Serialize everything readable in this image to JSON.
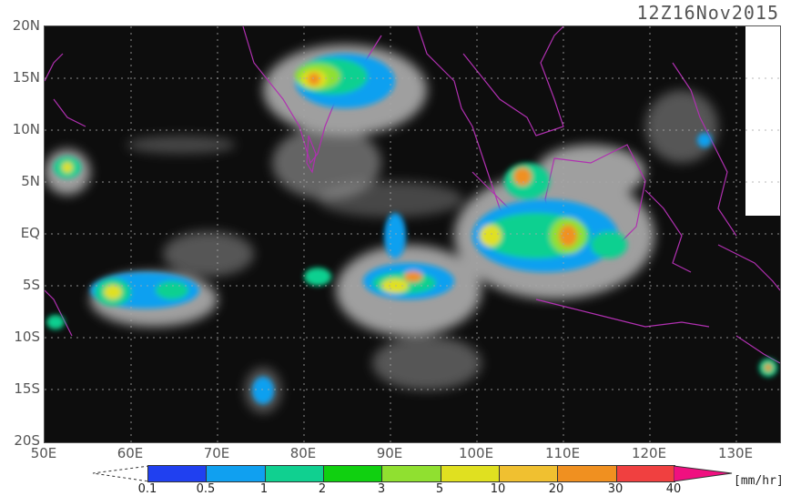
{
  "title": "12Z16Nov2015",
  "y_labels": [
    "20N",
    "15N",
    "10N",
    "5N",
    "EQ",
    "5S",
    "10S",
    "15S",
    "20S"
  ],
  "x_labels": [
    "50E",
    "60E",
    "70E",
    "80E",
    "90E",
    "100E",
    "110E",
    "120E",
    "130E"
  ],
  "colorbar": {
    "ticks": [
      "0.1",
      "0.5",
      "1",
      "2",
      "3",
      "5",
      "10",
      "20",
      "30",
      "40"
    ],
    "unit": "[mm/hr]",
    "colors": [
      "#2040f0",
      "#10a0f0",
      "#10d090",
      "#10d010",
      "#90e030",
      "#e0e020",
      "#f0c030",
      "#f09020",
      "#f04040",
      "#f01080"
    ]
  },
  "colors": {
    "background": "#0d0d0d",
    "grid": "#aaaaaa",
    "coastline": "#b030b0",
    "cloud": "#dcdcdc",
    "no_data": "#ffffff"
  }
}
